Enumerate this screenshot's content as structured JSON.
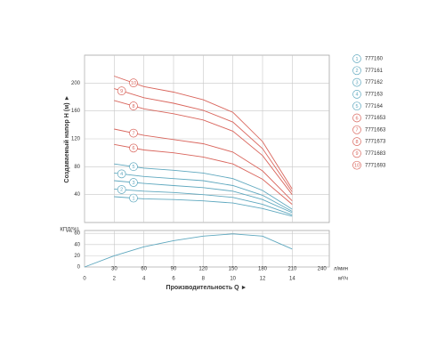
{
  "chart_data": [
    {
      "type": "line",
      "y_label": "Создаваемый напор H (м) ►",
      "x": [
        2,
        4,
        6,
        8,
        10,
        12,
        14
      ],
      "xlim": [
        0,
        16.5
      ],
      "xticks": [
        0,
        2,
        4,
        6,
        8,
        10,
        12,
        14
      ],
      "ylim": [
        0,
        240
      ],
      "yticks": [
        40,
        80,
        120,
        160,
        200
      ],
      "grid": true,
      "series": [
        {
          "name": "777160",
          "marker": "1",
          "color": "#5fa8bf",
          "values": [
            37,
            34,
            33,
            31,
            28,
            20,
            9
          ]
        },
        {
          "name": "777161",
          "marker": "2",
          "color": "#5fa8bf",
          "values": [
            48,
            45,
            43,
            40,
            36,
            26,
            11
          ]
        },
        {
          "name": "777162",
          "marker": "3",
          "color": "#5fa8bf",
          "values": [
            60,
            56,
            53,
            50,
            45,
            33,
            14
          ]
        },
        {
          "name": "777163",
          "marker": "4",
          "color": "#5fa8bf",
          "values": [
            71,
            66,
            63,
            60,
            53,
            39,
            16
          ]
        },
        {
          "name": "777164",
          "marker": "5",
          "color": "#5fa8bf",
          "values": [
            84,
            78,
            75,
            71,
            63,
            46,
            19
          ]
        },
        {
          "name": "7771653",
          "marker": "6",
          "color": "#d9655c",
          "values": [
            112,
            104,
            100,
            94,
            84,
            62,
            26
          ]
        },
        {
          "name": "7771663",
          "marker": "7",
          "color": "#d9655c",
          "values": [
            134,
            125,
            119,
            113,
            101,
            74,
            31
          ]
        },
        {
          "name": "7771673",
          "marker": "8",
          "color": "#d9655c",
          "values": [
            175,
            163,
            156,
            147,
            131,
            96,
            40
          ]
        },
        {
          "name": "7771683",
          "marker": "9",
          "color": "#d9655c",
          "values": [
            192,
            179,
            171,
            161,
            144,
            106,
            44
          ]
        },
        {
          "name": "7771693",
          "marker": "10",
          "color": "#d9655c",
          "values": [
            210,
            195,
            187,
            176,
            158,
            116,
            48
          ]
        }
      ]
    },
    {
      "type": "line",
      "y_label": "КПД(%)",
      "x_label": "Производительность Q ►",
      "x_unit": "м³/ч",
      "x2_unit": "л/мин",
      "x": [
        0,
        2,
        4,
        6,
        8,
        10,
        12,
        14
      ],
      "xlim": [
        0,
        16.5
      ],
      "xticks": [
        0,
        2,
        4,
        6,
        8,
        10,
        12,
        14
      ],
      "x2lim": [
        0,
        247.5
      ],
      "x2ticks": [
        30,
        60,
        90,
        120,
        150,
        180,
        210,
        240
      ],
      "ylim": [
        0,
        65
      ],
      "yticks": [
        0,
        20,
        40,
        60
      ],
      "grid": true,
      "series": [
        {
          "color": "#5fa8bf",
          "values": [
            0,
            20,
            36,
            47,
            55,
            59,
            55,
            32
          ]
        }
      ]
    }
  ]
}
